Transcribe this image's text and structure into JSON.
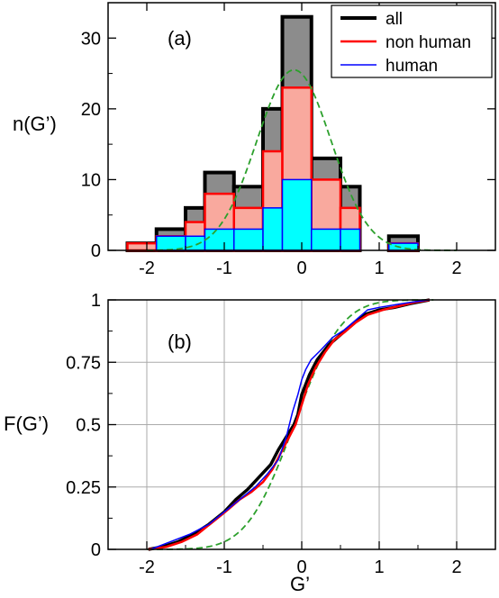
{
  "chart_data": [
    {
      "type": "bar",
      "panel_label": "(a)",
      "ylabel": "n(G’)",
      "xlim": [
        -2.5,
        2.5
      ],
      "ylim": [
        0,
        35
      ],
      "xticks": [
        -2,
        -1,
        0,
        1,
        2
      ],
      "xtick_labels": [
        "-2",
        "-1",
        "0",
        "1",
        "2"
      ],
      "yticks": [
        0,
        10,
        20,
        30
      ],
      "ytick_labels": [
        "0",
        "10",
        "20",
        "30"
      ],
      "bin_edges": [
        -2.5,
        -2.25,
        -1.875,
        -1.5,
        -1.25,
        -0.875,
        -0.5,
        -0.25,
        0.125,
        0.5,
        0.75,
        1.125,
        1.5,
        1.75,
        2.125,
        2.5
      ],
      "series": [
        {
          "name": "all",
          "color": "#000000",
          "fill": "#8c8c8c",
          "values": [
            0,
            1,
            3,
            6,
            11,
            9,
            20,
            33,
            13,
            9,
            0,
            2,
            0,
            0,
            0
          ]
        },
        {
          "name": "non human",
          "color": "#ff0000",
          "fill": "#f9a99e",
          "values": [
            0,
            1,
            2,
            4,
            8,
            6,
            14,
            23,
            10,
            6,
            0,
            1,
            0,
            0,
            0
          ]
        },
        {
          "name": "human",
          "color": "#0000ff",
          "fill": "#00ffff",
          "values": [
            0,
            0,
            2,
            2,
            3,
            3,
            6,
            10,
            3,
            3,
            0,
            1,
            0,
            0,
            0
          ]
        }
      ],
      "fit": {
        "color": "#2ca02c",
        "style": "dashed",
        "mu": -0.1,
        "sigma": 0.48,
        "amplitude": 25.5
      },
      "legend": [
        "all",
        "non human",
        "human"
      ],
      "legend_position": "top-right",
      "grid": false
    },
    {
      "type": "line",
      "panel_label": "(b)",
      "xlabel": "G’",
      "ylabel": "F(G’)",
      "xlim": [
        -2.5,
        2.5
      ],
      "ylim": [
        0,
        1
      ],
      "xticks": [
        -2,
        -1,
        0,
        1,
        2
      ],
      "xtick_labels": [
        "-2",
        "-1",
        "0",
        "1",
        "2"
      ],
      "yticks": [
        0,
        0.25,
        0.5,
        0.75,
        1
      ],
      "ytick_labels": [
        "0",
        "0.25",
        "0.5",
        "0.75",
        "1"
      ],
      "grid": true,
      "series": [
        {
          "name": "all",
          "color": "#000000",
          "x": [
            -1.98,
            -1.8,
            -1.6,
            -1.4,
            -1.2,
            -1.0,
            -0.85,
            -0.7,
            -0.55,
            -0.4,
            -0.3,
            -0.2,
            -0.1,
            -0.05,
            0.0,
            0.1,
            0.2,
            0.35,
            0.5,
            0.65,
            0.8,
            1.0,
            1.2,
            1.4,
            1.65
          ],
          "y": [
            0,
            0.01,
            0.03,
            0.06,
            0.1,
            0.15,
            0.2,
            0.24,
            0.29,
            0.34,
            0.4,
            0.45,
            0.5,
            0.54,
            0.62,
            0.7,
            0.76,
            0.82,
            0.86,
            0.9,
            0.94,
            0.96,
            0.97,
            0.985,
            1.0
          ]
        },
        {
          "name": "non human",
          "color": "#ff0000",
          "x": [
            -1.98,
            -1.75,
            -1.55,
            -1.35,
            -1.15,
            -0.95,
            -0.8,
            -0.65,
            -0.5,
            -0.38,
            -0.28,
            -0.18,
            -0.08,
            0.0,
            0.08,
            0.18,
            0.3,
            0.42,
            0.55,
            0.7,
            0.85,
            1.05,
            1.25,
            1.45,
            1.65
          ],
          "y": [
            0,
            0.01,
            0.03,
            0.06,
            0.11,
            0.16,
            0.2,
            0.23,
            0.27,
            0.32,
            0.38,
            0.44,
            0.5,
            0.58,
            0.66,
            0.73,
            0.79,
            0.84,
            0.87,
            0.91,
            0.94,
            0.96,
            0.975,
            0.99,
            1.0
          ]
        },
        {
          "name": "human",
          "color": "#0000ff",
          "x": [
            -1.95,
            -1.7,
            -1.45,
            -1.2,
            -1.0,
            -0.8,
            -0.6,
            -0.45,
            -0.3,
            -0.2,
            -0.12,
            -0.05,
            0.0,
            0.05,
            0.12,
            0.25,
            0.4,
            0.55,
            0.7,
            0.85,
            1.0,
            1.2,
            1.4,
            1.65
          ],
          "y": [
            0,
            0.03,
            0.06,
            0.1,
            0.15,
            0.2,
            0.25,
            0.3,
            0.36,
            0.45,
            0.55,
            0.62,
            0.68,
            0.72,
            0.76,
            0.8,
            0.85,
            0.88,
            0.92,
            0.96,
            0.97,
            0.98,
            0.99,
            1.0
          ]
        },
        {
          "name": "fit",
          "color": "#2ca02c",
          "style": "dashed",
          "cdf": {
            "mu": -0.1,
            "sigma": 0.48
          }
        }
      ]
    }
  ]
}
